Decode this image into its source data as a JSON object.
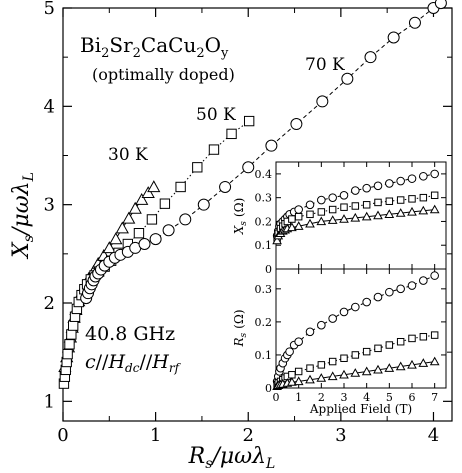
{
  "chart_data": {
    "type": "scatter",
    "main": {
      "xlabel_var": "R",
      "xlabel_sub": "s",
      "xlabel_rest": "/μωλ",
      "xlabel_sub2": "L",
      "ylabel_var": "X",
      "ylabel_sub": "s",
      "ylabel_rest": "/μωλ",
      "ylabel_sub2": "L",
      "xlim": [
        0,
        4.2
      ],
      "ylim": [
        0.8,
        5.0
      ],
      "xticks": [
        0,
        1,
        2,
        3,
        4
      ],
      "yticks": [
        1,
        2,
        3,
        4,
        5
      ],
      "series": [
        {
          "name": "30 K",
          "marker": "triangle",
          "line": "solid",
          "x": [
            0.02,
            0.04,
            0.06,
            0.08,
            0.1,
            0.12,
            0.14,
            0.17,
            0.2,
            0.24,
            0.28,
            0.33,
            0.38,
            0.44,
            0.5,
            0.57,
            0.64,
            0.71,
            0.78,
            0.85,
            0.92,
            0.98
          ],
          "y": [
            1.35,
            1.45,
            1.55,
            1.65,
            1.75,
            1.85,
            1.93,
            2.02,
            2.1,
            2.18,
            2.25,
            2.32,
            2.4,
            2.48,
            2.56,
            2.65,
            2.76,
            2.86,
            2.96,
            3.05,
            3.12,
            3.18
          ]
        },
        {
          "name": "50 K",
          "marker": "square",
          "line": "dotted",
          "x": [
            0.01,
            0.02,
            0.03,
            0.04,
            0.05,
            0.07,
            0.09,
            0.11,
            0.13,
            0.15,
            0.17,
            0.2,
            0.23,
            0.26,
            0.3,
            0.34,
            0.39,
            0.45,
            0.52,
            0.6,
            0.7,
            0.82,
            0.96,
            1.1,
            1.27,
            1.45,
            1.63,
            1.82,
            2.01
          ],
          "y": [
            1.18,
            1.25,
            1.32,
            1.4,
            1.48,
            1.58,
            1.68,
            1.77,
            1.86,
            1.94,
            2.01,
            2.08,
            2.14,
            2.19,
            2.24,
            2.28,
            2.32,
            2.37,
            2.43,
            2.51,
            2.6,
            2.71,
            2.85,
            3.01,
            3.18,
            3.38,
            3.56,
            3.72,
            3.85
          ]
        },
        {
          "name": "70 K",
          "marker": "circle",
          "line": "dashed",
          "x": [
            0.25,
            0.27,
            0.29,
            0.31,
            0.33,
            0.35,
            0.38,
            0.41,
            0.45,
            0.5,
            0.56,
            0.62,
            0.7,
            0.78,
            0.88,
            1.0,
            1.14,
            1.32,
            1.52,
            1.75,
            2.0,
            2.25,
            2.52,
            2.8,
            3.07,
            3.32,
            3.57,
            3.8,
            4.0,
            4.08
          ],
          "y": [
            2.05,
            2.1,
            2.15,
            2.19,
            2.23,
            2.27,
            2.3,
            2.34,
            2.38,
            2.42,
            2.46,
            2.49,
            2.52,
            2.56,
            2.6,
            2.65,
            2.74,
            2.85,
            3.0,
            3.18,
            3.38,
            3.6,
            3.82,
            4.05,
            4.28,
            4.5,
            4.7,
            4.85,
            5.0,
            5.05
          ]
        }
      ],
      "annotations": {
        "compound": "Bi₂Sr₂CaCu₂Oᵧ",
        "compound_parts": [
          "Bi",
          "2",
          "Sr",
          "2",
          "CaCu",
          "2",
          "O",
          "y"
        ],
        "doping": "(optimally doped)",
        "label_30": "30  K",
        "label_50": "50  K",
        "label_70": "70  K",
        "freq": "40.8  GHz",
        "orient_c": "c",
        "orient_sep1": "//",
        "orient_H": "H",
        "orient_dc": "dc",
        "orient_sep2": "//",
        "orient_H2": "H",
        "orient_rf": "rf"
      }
    },
    "inset_top": {
      "ylabel_var": "X",
      "ylabel_sub": "s",
      "ylabel_unit": "(Ω)",
      "xlim": [
        0,
        7.5
      ],
      "ylim": [
        0,
        0.45
      ],
      "yticks": [
        0,
        0.1,
        0.2,
        0.3,
        0.4
      ],
      "yticklabels": [
        "0",
        "0.1",
        "0.2",
        "0.3",
        "0.4"
      ],
      "series": [
        {
          "name": "70 K",
          "marker": "circle",
          "line": "dashed",
          "x": [
            0.05,
            0.1,
            0.15,
            0.2,
            0.3,
            0.4,
            0.5,
            0.6,
            0.8,
            1.0,
            1.5,
            2.0,
            2.5,
            3.0,
            3.5,
            4.0,
            4.5,
            5.0,
            5.5,
            6.0,
            6.5,
            7.0
          ],
          "y": [
            0.14,
            0.16,
            0.18,
            0.19,
            0.2,
            0.21,
            0.22,
            0.23,
            0.24,
            0.25,
            0.27,
            0.29,
            0.3,
            0.31,
            0.33,
            0.34,
            0.35,
            0.36,
            0.37,
            0.38,
            0.39,
            0.4
          ]
        },
        {
          "name": "50 K",
          "marker": "square",
          "line": "dotted",
          "x": [
            0.05,
            0.1,
            0.2,
            0.3,
            0.4,
            0.5,
            0.7,
            1.0,
            1.5,
            2.0,
            2.5,
            3.0,
            3.5,
            4.0,
            4.5,
            5.0,
            5.5,
            6.0,
            6.5,
            7.0
          ],
          "y": [
            0.13,
            0.15,
            0.17,
            0.18,
            0.19,
            0.2,
            0.21,
            0.22,
            0.23,
            0.24,
            0.25,
            0.26,
            0.265,
            0.27,
            0.28,
            0.285,
            0.29,
            0.295,
            0.3,
            0.31
          ]
        },
        {
          "name": "30 K",
          "marker": "triangle",
          "line": "solid",
          "x": [
            0.05,
            0.1,
            0.2,
            0.3,
            0.4,
            0.5,
            0.7,
            1.0,
            1.5,
            2.0,
            2.5,
            3.0,
            3.5,
            4.0,
            4.5,
            5.0,
            5.5,
            6.0,
            6.5,
            7.0
          ],
          "y": [
            0.12,
            0.14,
            0.15,
            0.16,
            0.165,
            0.17,
            0.175,
            0.18,
            0.19,
            0.2,
            0.205,
            0.21,
            0.215,
            0.22,
            0.225,
            0.23,
            0.235,
            0.24,
            0.245,
            0.25
          ]
        }
      ]
    },
    "inset_bottom": {
      "ylabel_var": "R",
      "ylabel_sub": "s",
      "ylabel_unit": "(Ω)",
      "xlabel": "Applied Field (T)",
      "xlim": [
        0,
        7.5
      ],
      "ylim": [
        0,
        0.36
      ],
      "xticks": [
        0,
        1,
        2,
        3,
        4,
        5,
        6,
        7
      ],
      "yticks": [
        0,
        0.1,
        0.2,
        0.3
      ],
      "yticklabels": [
        "0",
        "0.1",
        "0.2",
        "0.3"
      ],
      "series": [
        {
          "name": "70 K",
          "marker": "circle",
          "line": "dashed",
          "x": [
            0.05,
            0.1,
            0.15,
            0.2,
            0.3,
            0.4,
            0.5,
            0.6,
            0.8,
            1.0,
            1.5,
            2.0,
            2.5,
            3.0,
            3.5,
            4.0,
            4.5,
            5.0,
            5.5,
            6.0,
            6.5,
            7.0
          ],
          "y": [
            0.02,
            0.035,
            0.05,
            0.06,
            0.075,
            0.09,
            0.1,
            0.11,
            0.13,
            0.14,
            0.17,
            0.19,
            0.21,
            0.23,
            0.245,
            0.26,
            0.275,
            0.29,
            0.3,
            0.31,
            0.325,
            0.34
          ]
        },
        {
          "name": "50 K",
          "marker": "square",
          "line": "dotted",
          "x": [
            0.05,
            0.1,
            0.2,
            0.3,
            0.4,
            0.5,
            0.7,
            1.0,
            1.5,
            2.0,
            2.5,
            3.0,
            3.5,
            4.0,
            4.5,
            5.0,
            5.5,
            6.0,
            6.5,
            7.0
          ],
          "y": [
            0.01,
            0.015,
            0.02,
            0.025,
            0.03,
            0.035,
            0.04,
            0.05,
            0.06,
            0.07,
            0.08,
            0.09,
            0.1,
            0.11,
            0.12,
            0.13,
            0.14,
            0.15,
            0.155,
            0.16
          ]
        },
        {
          "name": "30 K",
          "marker": "triangle",
          "line": "solid",
          "x": [
            0.05,
            0.1,
            0.2,
            0.3,
            0.5,
            0.7,
            1.0,
            1.5,
            2.0,
            2.5,
            3.0,
            3.5,
            4.0,
            4.5,
            5.0,
            5.5,
            6.0,
            6.5,
            7.0
          ],
          "y": [
            0.005,
            0.008,
            0.01,
            0.012,
            0.015,
            0.018,
            0.02,
            0.025,
            0.03,
            0.035,
            0.04,
            0.045,
            0.05,
            0.055,
            0.06,
            0.065,
            0.07,
            0.075,
            0.08
          ]
        }
      ]
    }
  }
}
